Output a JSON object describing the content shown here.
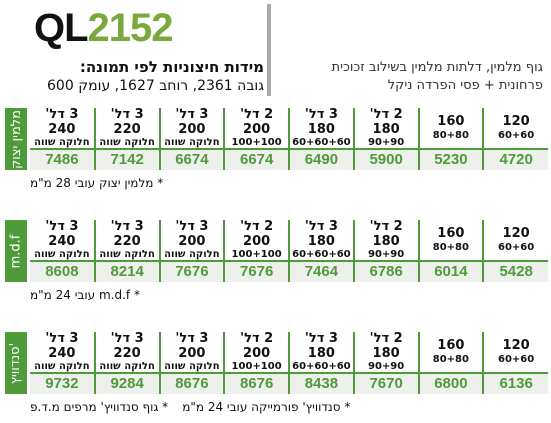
{
  "header": {
    "model_prefix": "QL",
    "model_number": "2152",
    "dims_title": "מידות חיצוניות לפי תמונה:",
    "dims": "גובה 2361, רוחב 1627, עומק 600",
    "description": [
      "גוף מלמין, דלתות מלמין בשילוב זכוכית",
      "פרחונית + פסי הפרדה ניקל"
    ]
  },
  "columns": [
    {
      "title": "120",
      "subtitle": "60+60"
    },
    {
      "title": "160",
      "subtitle": "80+80"
    },
    {
      "title": "2 דל' 180",
      "subtitle": "90+90"
    },
    {
      "title": "3 דל' 180",
      "subtitle": "60+60+60"
    },
    {
      "title": "2 דל' 200",
      "subtitle": "100+100"
    },
    {
      "title": "3 דל' 200",
      "subtitle": "חלוקה שווה"
    },
    {
      "title": "3 דל' 220",
      "subtitle": "חלוקה שווה"
    },
    {
      "title": "3 דל' 240",
      "subtitle": "חלוקה שווה"
    }
  ],
  "tables": [
    {
      "label": "מלמין יצוק",
      "prices": [
        4720,
        5230,
        5900,
        6490,
        6674,
        6674,
        7142,
        7486
      ],
      "notes": [
        "* מלמין יצוק עובי 28 מ\"מ"
      ]
    },
    {
      "label": "m.d.f",
      "prices": [
        5428,
        6014,
        6786,
        7464,
        7676,
        7676,
        8214,
        8608
      ],
      "notes": [
        "* m.d.f עובי 24 מ\"מ"
      ]
    },
    {
      "label": "סנדוויץ'",
      "prices": [
        6136,
        6800,
        7670,
        8438,
        8676,
        8676,
        9284,
        9732
      ],
      "notes": [
        "* סנדוויץ' פורמייקה עובי 24 מ\"מ",
        "* גוף סנדוויץ' מרפים מ.ד.פ"
      ]
    }
  ]
}
